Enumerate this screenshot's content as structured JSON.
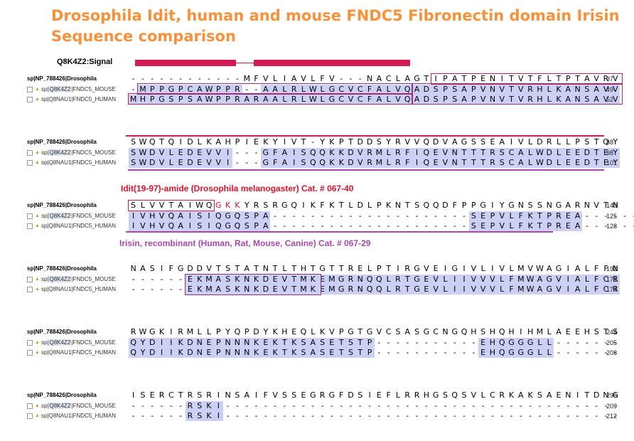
{
  "title": {
    "line1": "Drosophila Idit, human and mouse FNDC5 Fibronectin domain Irisin",
    "line2": "Sequence comparison"
  },
  "signal": {
    "label": "Q8K4Z2:Signal"
  },
  "colors": {
    "title": "#f7923a",
    "red": "#d01c52",
    "purple": "#a848ae",
    "highlight": "#ccd0f4"
  },
  "icons": {
    "checkbox": "checkbox-icon",
    "swissprot": "swissprot-icon"
  },
  "labels": {
    "drosophila": "sp|NP_788426|Drosophila",
    "mouse_prefix": "sp|",
    "mouse_acc": "Q8K4Z2",
    "mouse_suffix": "|FNDC5_MOUSE",
    "human_prefix": "sp|",
    "human_acc": "Q8NAU1",
    "human_suffix": "|FNDC5_HUMAN"
  },
  "annotations": {
    "idit": "Idit(19-97)-amide (Drosophila melanogaster) Cat. # 067-40",
    "irisin": "Irisin, recombinant (Human, Rat, Mouse, Canine) Cat. # 067-29"
  },
  "blocks": [
    {
      "droso": "------------MFVLIAVLFV---NACLAGTIPATPENITVTFLTPTAVRV",
      "droso_end": "37",
      "mouse": "-MPPGPCAWPPR--AALRLWLGCVCFALVQADSPSAPVNVTVRHLKANSAVV",
      "mouse_end": "49",
      "human": "MHPGSPSAWPPRARAALRLWLGCVCFALVQADSPSAPVNVTVRHLKANSAVV",
      "human_end": "52"
    },
    {
      "droso": "SWQTQIDLKAHPIEKYIVT-YKPTDDSYRVVQDVAGSSEAIVLDRLLPSTQY",
      "droso_end": "88",
      "mouse": "SWDVLEDEVVI---GFAISQQKKDVRMLRFIQEVNTTTRSCALWDLEEDTEY",
      "mouse_end": "98",
      "human": "SWDVLEDEVVI---GFAISQQKKDVRMLRFIQEVNTTTRSCALWDLEEDTEY",
      "human_end": "101"
    },
    {
      "droso": "SLVVTAIWQGKKYRSRGQIKFKTLDLPKNTSQQDFPPGIYGNSSNGARNVTN",
      "droso_end": "140",
      "mouse": "IVHVQAISIQGQSPA---------------------SEPVLFKTPREA------",
      "mouse_end": "125",
      "human": "IVHVQAISIQGQSPA---------------------SEPVLFKTPREA------",
      "human_end": "128"
    },
    {
      "droso": "NASIFGDDVTSTATNTLTHTGTTRELPTIRGVEIGIVLIVLMVWAGIALFFN",
      "droso_end": "192",
      "mouse": "------EKMASKNKDEVTMKEMGRNQQLRTGEVLIIVVVLFMWAGVIALFCR",
      "mouse_end": "171",
      "human": "------EKMASKNKDEVTMKEMGRNQQLRTGEVLIIVVVLFMWAGVIALFCR",
      "human_end": "174"
    },
    {
      "droso": "RWGKIRMLLPYQPDYKHEQLKVPGTGVCSASGCNGQHSHQHIHMLAEEHSTS",
      "droso_end": "244",
      "mouse": "QYDIIKDNEPNNNKEKTKSASETSTP-----------EHQGGGLL-------",
      "mouse_end": "205",
      "human": "QYDIIKDNEPNNNKEKTKSASETSTP-----------EHQGGGLL-------",
      "human_end": "208"
    },
    {
      "droso": "ISERCTRSRINSAIFVSSEGRGFDSIEFLRRHGSQSVLCRKAKSAENITDNG",
      "droso_end": "296",
      "mouse": "------RSKI------------------------------------------",
      "mouse_end": "209",
      "human": "------RSKI------------------------------------------",
      "human_end": "212"
    }
  ]
}
